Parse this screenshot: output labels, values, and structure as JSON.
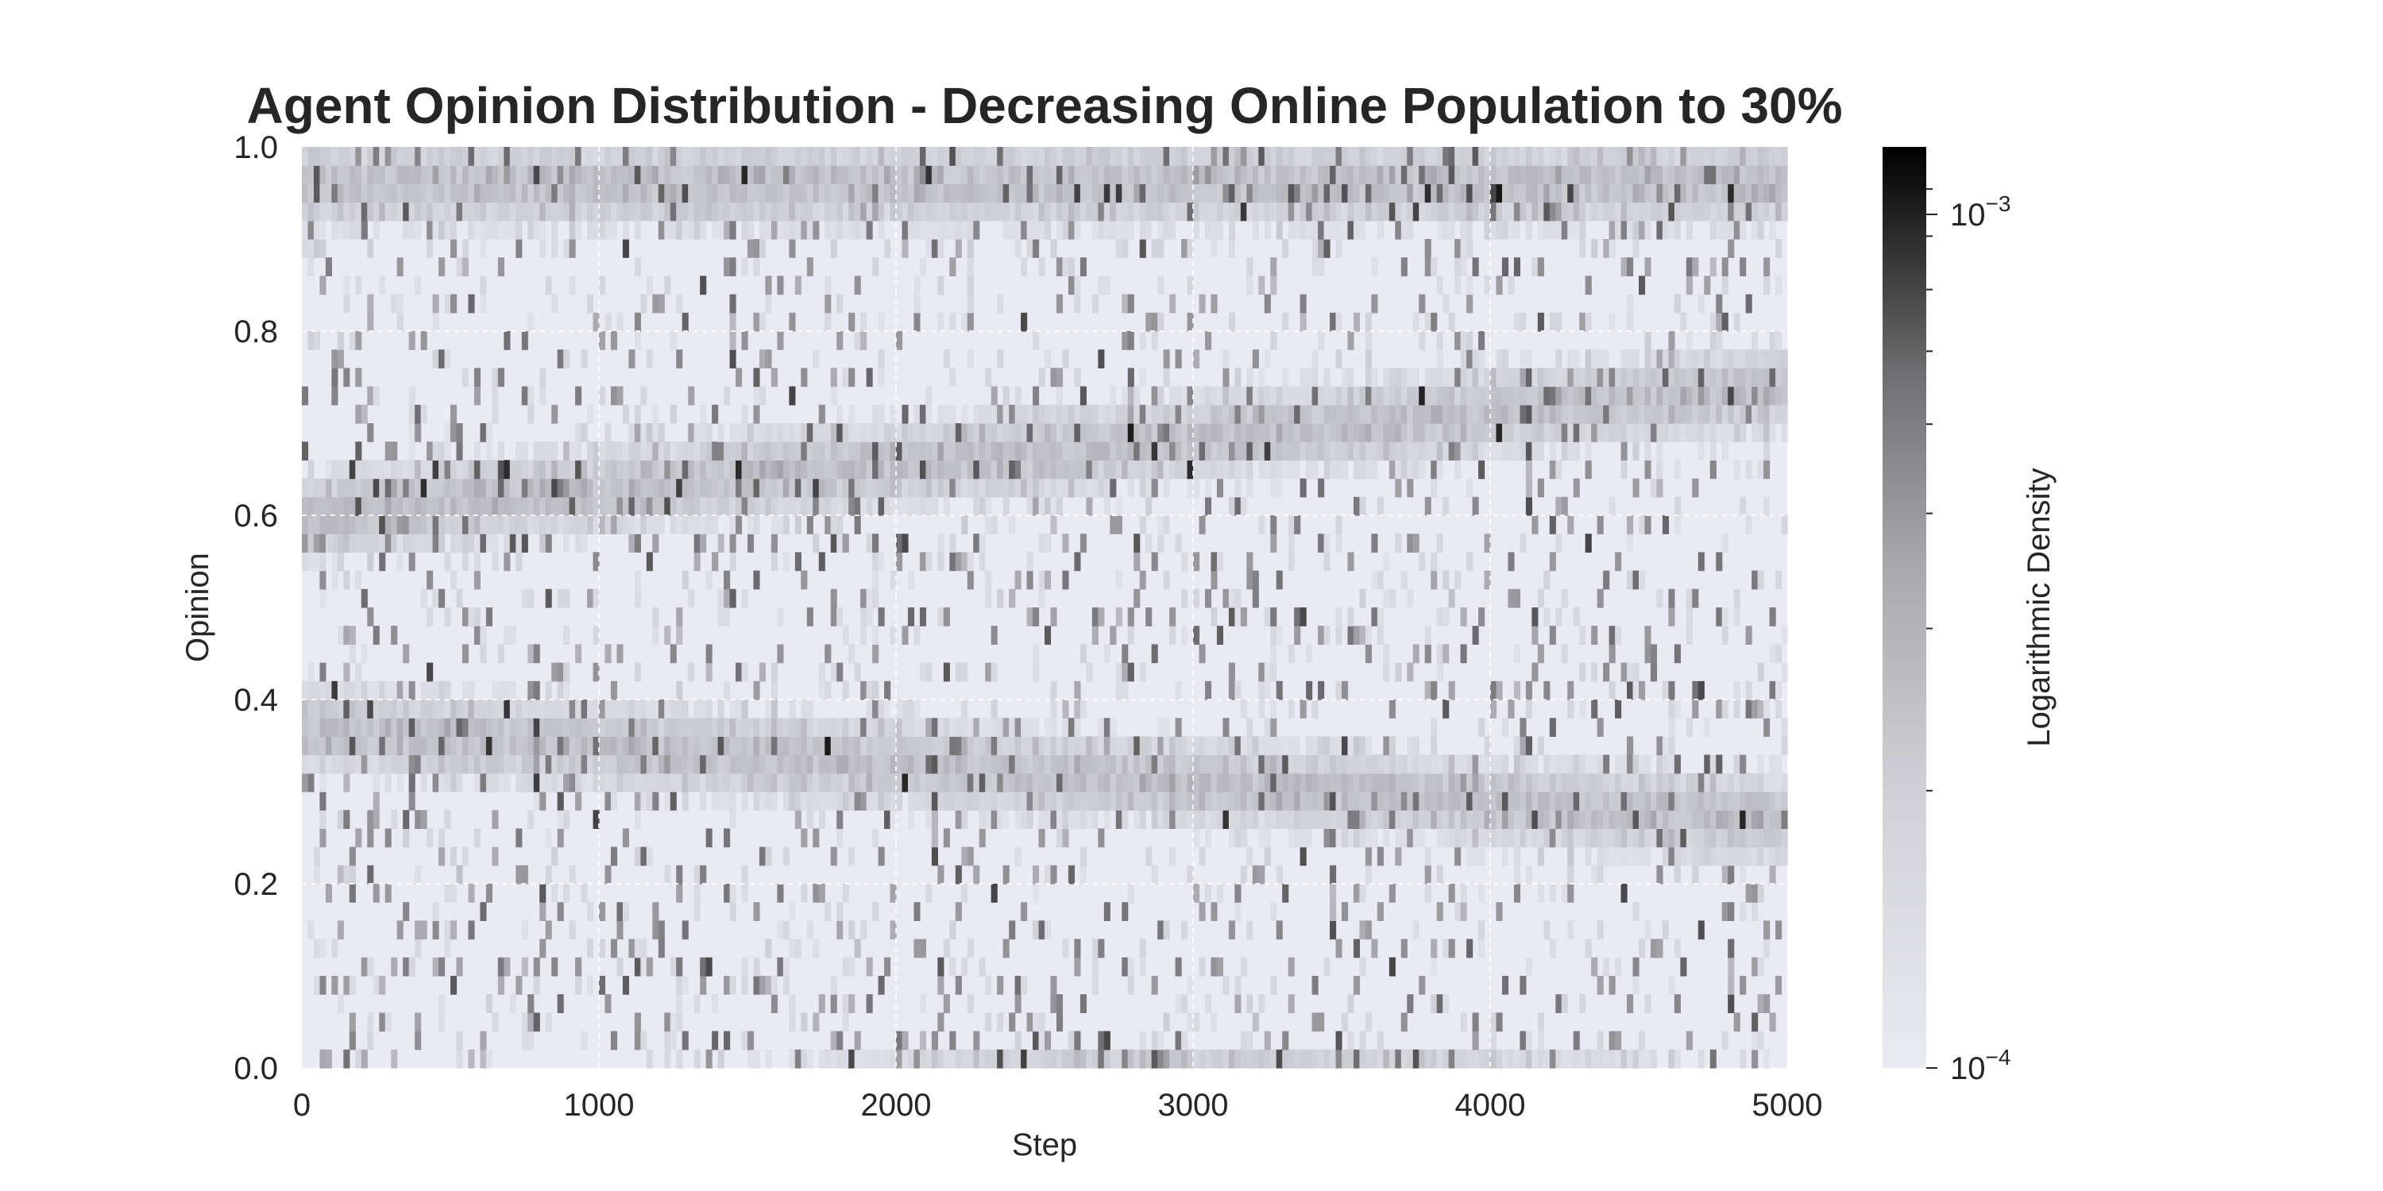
{
  "chart_data": {
    "type": "heatmap",
    "title": "Agent Opinion Distribution - Decreasing Online Population to 30%",
    "xlabel": "Step",
    "ylabel": "Opinion",
    "xlim": [
      0,
      5000
    ],
    "ylim": [
      0.0,
      1.0
    ],
    "x_ticks": [
      "0",
      "1000",
      "2000",
      "3000",
      "4000",
      "5000"
    ],
    "y_ticks": [
      "0.0",
      "0.2",
      "0.4",
      "0.6",
      "0.8",
      "1.0"
    ],
    "grid": true,
    "colormap": "grayscale (light lavender-gray to black)",
    "colorbar": {
      "label": "Logarithmic Density",
      "scale": "log",
      "range": [
        0.0001,
        0.001
      ],
      "tick_base": "10",
      "ticks": [
        {
          "base": "10",
          "exponent": "−4",
          "value": 0.0001
        },
        {
          "base": "10",
          "exponent": "−3",
          "value": 0.001
        }
      ]
    },
    "features": [
      {
        "description": "dense band near opinion 0.95-1.0 across all steps",
        "opinion_start": 0.96,
        "opinion_end": 0.96,
        "peak_density": 0.001
      },
      {
        "description": "band rising from opinion ~0.60 at step 0 to ~0.74 at step 5000",
        "opinion_start": 0.6,
        "opinion_end": 0.74,
        "peak_density": 0.0007
      },
      {
        "description": "band falling from opinion ~0.37 at step 0 to ~0.27 at step 5000",
        "opinion_start": 0.37,
        "opinion_end": 0.27,
        "peak_density": 0.0006
      },
      {
        "description": "dense band at opinion 0.0 strongest around steps 2500-3500",
        "opinion_start": 0.0,
        "opinion_end": 0.0,
        "peak_density": 0.001
      }
    ]
  },
  "colors": {
    "background_low": "#eaeaf2",
    "high": "#000000",
    "text": "#262626"
  }
}
